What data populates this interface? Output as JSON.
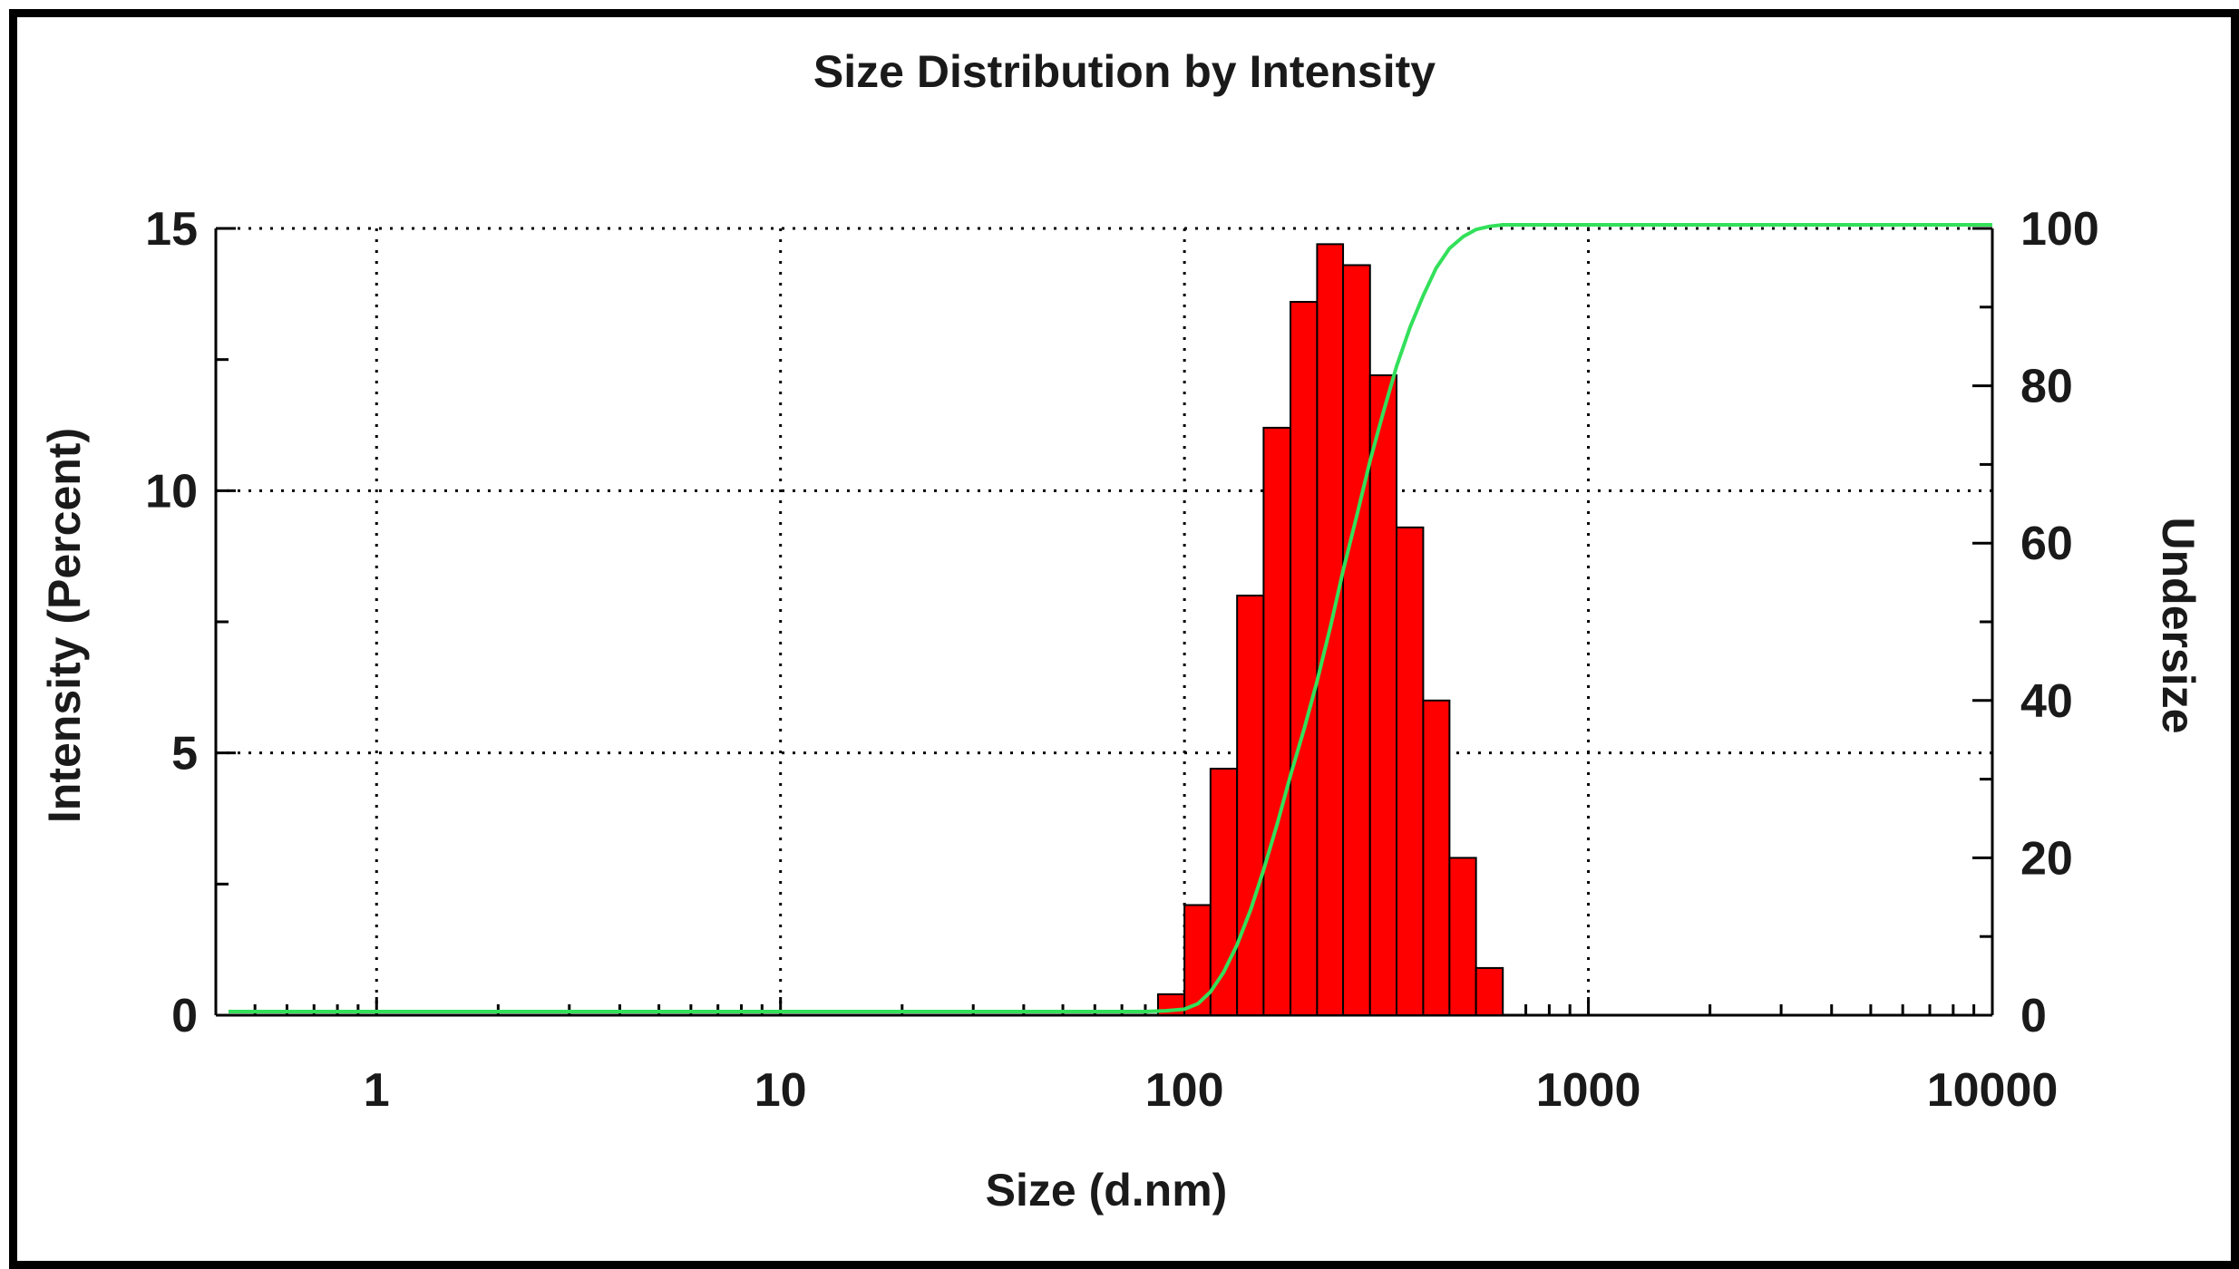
{
  "colors": {
    "bar_fill": "#ff0000",
    "bar_stroke": "#000000",
    "cumulative_line": "#33e05a",
    "grid": "#000000",
    "frame": "#000000"
  },
  "chart_data": {
    "type": "bar",
    "title": "Size Distribution by Intensity",
    "xlabel": "Size (d.nm)",
    "ylabel": "Intensity (Percent)",
    "y2label": "Undersize",
    "xscale": "log",
    "xlim": [
      0.4,
      10000
    ],
    "ylim": [
      0,
      15
    ],
    "y2lim": [
      0,
      100
    ],
    "x_ticks": [
      "1",
      "10",
      "100",
      "1000",
      "10000"
    ],
    "y_ticks": [
      "0",
      "5",
      "10",
      "15"
    ],
    "y2_ticks": [
      "0",
      "20",
      "40",
      "60",
      "80",
      "100"
    ],
    "grid": true,
    "series": [
      {
        "name": "Intensity",
        "kind": "bar",
        "bins": [
          {
            "lo": 86,
            "hi": 100,
            "value": 0.4
          },
          {
            "lo": 100,
            "hi": 116,
            "value": 2.1
          },
          {
            "lo": 116,
            "hi": 135,
            "value": 4.7
          },
          {
            "lo": 135,
            "hi": 157,
            "value": 8.0
          },
          {
            "lo": 157,
            "hi": 183,
            "value": 11.2
          },
          {
            "lo": 183,
            "hi": 213,
            "value": 13.6
          },
          {
            "lo": 213,
            "hi": 247,
            "value": 14.7
          },
          {
            "lo": 247,
            "hi": 288,
            "value": 14.3
          },
          {
            "lo": 288,
            "hi": 335,
            "value": 12.2
          },
          {
            "lo": 335,
            "hi": 390,
            "value": 9.3
          },
          {
            "lo": 390,
            "hi": 453,
            "value": 6.0
          },
          {
            "lo": 453,
            "hi": 527,
            "value": 3.0
          },
          {
            "lo": 527,
            "hi": 614,
            "value": 0.9
          }
        ]
      },
      {
        "name": "Undersize",
        "kind": "line",
        "axis": "right",
        "x": [
          0.4,
          80,
          90,
          100,
          108,
          116,
          125,
          135,
          146,
          157,
          170,
          183,
          198,
          213,
          230,
          247,
          267,
          288,
          310,
          335,
          362,
          390,
          420,
          453,
          490,
          527,
          570,
          614,
          700,
          800,
          10000
        ],
        "y": [
          0,
          0,
          0.1,
          0.3,
          1.0,
          2.5,
          5.0,
          8.5,
          13.0,
          18.0,
          24.0,
          30.0,
          36.0,
          42.0,
          49.0,
          56.0,
          63.0,
          70.0,
          76.0,
          82.0,
          87.0,
          91.0,
          94.5,
          97.0,
          98.5,
          99.4,
          99.8,
          100,
          100,
          100,
          100
        ]
      }
    ]
  }
}
